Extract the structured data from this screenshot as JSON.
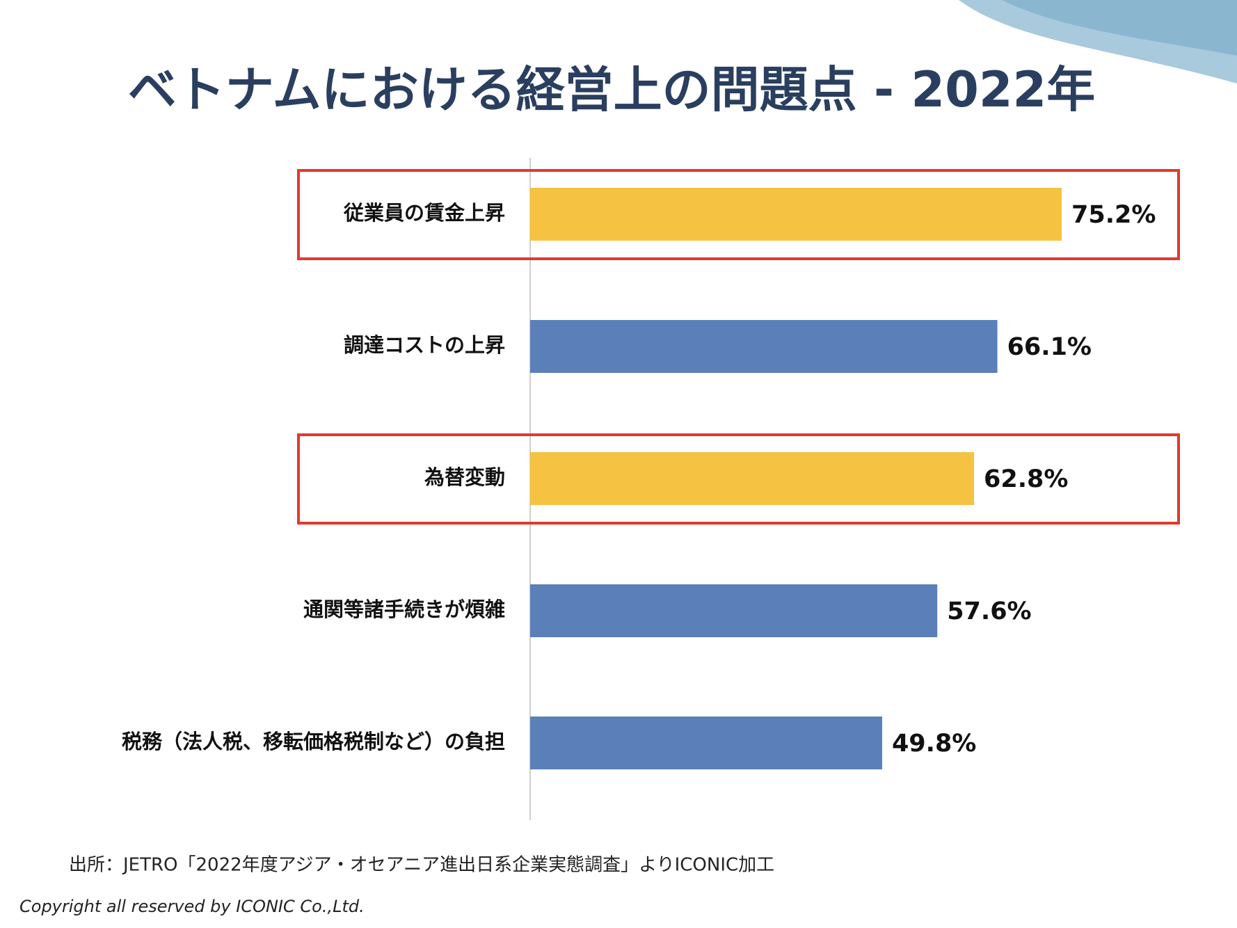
{
  "chart_data": {
    "type": "barh",
    "title": "ベトナムにおける経営上の問題点 - 2022年",
    "categories": [
      "従業員の賃金上昇",
      "調達コストの上昇",
      "為替変動",
      "通関等諸手続きが煩雑",
      "税務（法人税、移転価格税制など）の負担"
    ],
    "values": [
      75.2,
      66.1,
      62.8,
      57.6,
      49.8
    ],
    "value_labels": [
      "75.2%",
      "66.1%",
      "62.8%",
      "57.6%",
      "49.8%"
    ],
    "colors": [
      "#f5c242",
      "#5b7fb8",
      "#f5c242",
      "#5b7fb8",
      "#5b7fb8"
    ],
    "highlighted": [
      true,
      false,
      true,
      false,
      false
    ],
    "highlight_color": "#e03a2f",
    "xlim": [
      0,
      100
    ],
    "source": "出所：JETRO「2022年度アジア・オセアニア進出日系企業実態調査」よりICONIC加工",
    "copyright": "Copyright all reserved by ICONIC Co.,Ltd."
  }
}
